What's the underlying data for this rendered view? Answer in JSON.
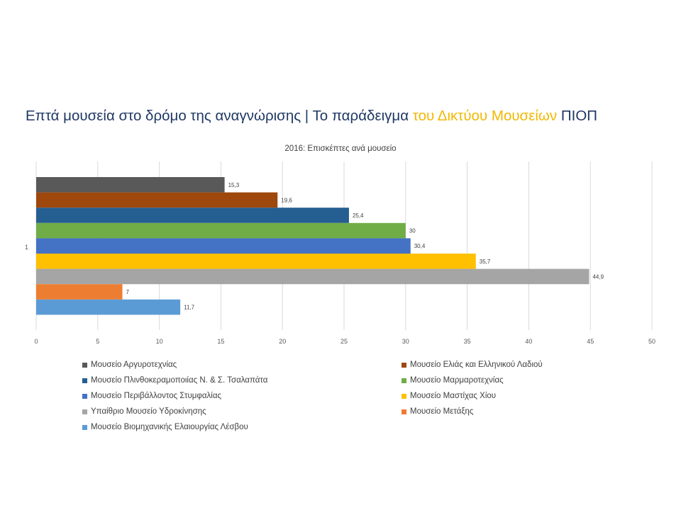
{
  "slide": {
    "title_part1": "Επτά μουσεία στο δρόμο της αναγνώρισης | Το παράδειγμα ",
    "title_accent": "του Δικτύου Μουσείων",
    "title_part2": " ΠΙΟΠ"
  },
  "chart_data": {
    "type": "bar",
    "orientation": "horizontal",
    "title": "2016: Επισκέπτες ανά μουσείο",
    "categories": [
      "1"
    ],
    "xlim": [
      0,
      50
    ],
    "xticks": [
      0,
      5,
      10,
      15,
      20,
      25,
      30,
      35,
      40,
      45,
      50
    ],
    "xtick_labels": [
      "0",
      "5",
      "10",
      "15",
      "20",
      "25",
      "30",
      "35",
      "40",
      "45",
      "50"
    ],
    "grid": "vertical",
    "legend_position": "bottom",
    "series": [
      {
        "name": "Μουσείο Αργυροτεχνίας",
        "values": [
          15.3
        ],
        "label": "15,3",
        "color": "#595959"
      },
      {
        "name": "Μουσείο Ελιάς και Ελληνικού Λαδιού",
        "values": [
          19.6
        ],
        "label": "19,6",
        "color": "#9e480e"
      },
      {
        "name": "Μουσείο Πλινθοκεραμοποιίας Ν. & Σ. Τσαλαπάτα",
        "values": [
          25.4
        ],
        "label": "25,4",
        "color": "#255e91"
      },
      {
        "name": "Μουσείο Μαρμαροτεχνίας",
        "values": [
          30
        ],
        "label": "30",
        "color": "#70ad47"
      },
      {
        "name": "Μουσείο Περιβάλλοντος Στυμφαλίας",
        "values": [
          30.4
        ],
        "label": "30,4",
        "color": "#4472c4"
      },
      {
        "name": "Μουσείο Μαστίχας Χίου",
        "values": [
          35.7
        ],
        "label": "35,7",
        "color": "#ffc000"
      },
      {
        "name": "Υπαίθριο Μουσείο Υδροκίνησης",
        "values": [
          44.9
        ],
        "label": "44,9",
        "color": "#a5a5a5"
      },
      {
        "name": "Μουσείο Μετάξης",
        "values": [
          7
        ],
        "label": "7",
        "color": "#ed7d31"
      },
      {
        "name": "Μουσείο Βιομηχανικής Ελαιουργίας Λέσβου",
        "values": [
          11.7
        ],
        "label": "11,7",
        "color": "#5b9bd5"
      }
    ]
  }
}
